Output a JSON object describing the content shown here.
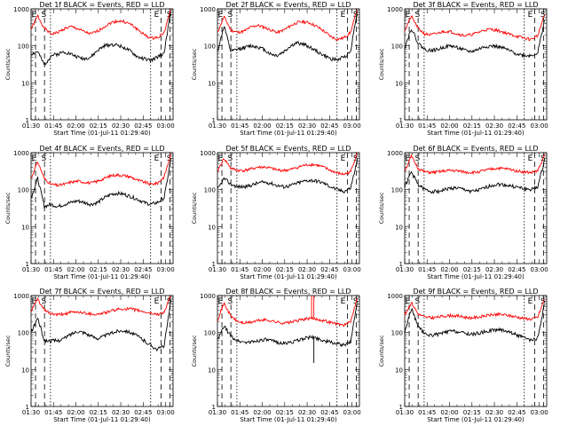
{
  "figure": {
    "y_axis_label": "Counts/sec",
    "x_axis_label": "Start Time (01-Jul-11 01:29:40)",
    "event_markers": {
      "eclipse": "E",
      "saa": "S"
    },
    "colors": {
      "events": "#000000",
      "lld": "#ff0000"
    }
  },
  "chart_data": [
    {
      "type": "line",
      "title": "Det 1f BLACK = Events, RED = LLD",
      "xlabel": "Start Time (01-Jul-11 01:29:40)",
      "ylabel": "Counts/sec",
      "yscale": "log",
      "ylim": [
        1,
        1000
      ],
      "xlim": [
        "01:30",
        "03:05"
      ],
      "x_ticks": [
        "01:30",
        "01:45",
        "02:00",
        "02:15",
        "02:30",
        "02:45",
        "03:00"
      ],
      "y_ticks": [
        "1",
        "10",
        "100",
        "1000"
      ],
      "markers": {
        "left": [
          "E",
          "S"
        ],
        "right": [
          "E",
          "S"
        ]
      },
      "spike": false,
      "series": [
        {
          "name": "LLD",
          "color": "red",
          "values": [
            280,
            650,
            300,
            210,
            230,
            290,
            330,
            290,
            240,
            210,
            250,
            330,
            420,
            470,
            450,
            380,
            280,
            200,
            160,
            170,
            230,
            1000
          ]
        },
        {
          "name": "Events",
          "color": "black",
          "values": [
            60,
            70,
            30,
            55,
            60,
            70,
            60,
            50,
            45,
            50,
            75,
            100,
            110,
            105,
            90,
            70,
            50,
            45,
            40,
            50,
            65,
            900
          ]
        }
      ]
    },
    {
      "type": "line",
      "title": "Det 2f BLACK = Events, RED = LLD",
      "xlabel": "Start Time (01-Jul-11 01:29:40)",
      "ylabel": "Counts/sec",
      "yscale": "log",
      "ylim": [
        1,
        1000
      ],
      "xlim": [
        "01:30",
        "03:05"
      ],
      "x_ticks": [
        "01:30",
        "01:45",
        "02:00",
        "02:15",
        "02:30",
        "02:45",
        "03:00"
      ],
      "y_ticks": [
        "1",
        "10",
        "100",
        "1000"
      ],
      "markers": {
        "left": [
          "E",
          "S"
        ],
        "right": [
          "E",
          "S"
        ]
      },
      "spike": false,
      "series": [
        {
          "name": "LLD",
          "color": "red",
          "values": [
            230,
            620,
            270,
            230,
            250,
            320,
            360,
            320,
            270,
            230,
            270,
            350,
            430,
            450,
            410,
            330,
            250,
            180,
            150,
            165,
            230,
            980
          ]
        },
        {
          "name": "Events",
          "color": "black",
          "values": [
            70,
            350,
            70,
            80,
            90,
            100,
            95,
            80,
            60,
            55,
            70,
            100,
            120,
            110,
            90,
            70,
            55,
            45,
            42,
            50,
            70,
            900
          ]
        }
      ]
    },
    {
      "type": "line",
      "title": "Det 3f BLACK = Events, RED = LLD",
      "xlabel": "Start Time (01-Jul-11 01:29:40)",
      "ylabel": "Counts/sec",
      "yscale": "log",
      "ylim": [
        1,
        1000
      ],
      "xlim": [
        "01:30",
        "03:05"
      ],
      "x_ticks": [
        "01:30",
        "01:45",
        "02:00",
        "02:15",
        "02:30",
        "02:45",
        "03:00"
      ],
      "y_ticks": [
        "1",
        "10",
        "100",
        "1000"
      ],
      "markers": {
        "left": [
          "E",
          "S"
        ],
        "right": [
          "E",
          "S"
        ]
      },
      "spike": false,
      "series": [
        {
          "name": "LLD",
          "color": "red",
          "values": [
            260,
            640,
            300,
            210,
            200,
            220,
            250,
            240,
            210,
            190,
            200,
            230,
            270,
            280,
            260,
            230,
            200,
            180,
            160,
            150,
            190,
            700
          ]
        },
        {
          "name": "Events",
          "color": "black",
          "values": [
            90,
            300,
            120,
            80,
            75,
            80,
            95,
            100,
            90,
            75,
            70,
            80,
            95,
            100,
            95,
            85,
            70,
            60,
            55,
            55,
            65,
            500
          ]
        }
      ]
    },
    {
      "type": "line",
      "title": "Det 4f BLACK = Events, RED = LLD",
      "xlabel": "Start Time (01-Jul-11 01:29:40)",
      "ylabel": "Counts/sec",
      "yscale": "log",
      "ylim": [
        1,
        1000
      ],
      "xlim": [
        "01:30",
        "03:05"
      ],
      "x_ticks": [
        "01:30",
        "01:45",
        "02:00",
        "02:15",
        "02:30",
        "02:45",
        "03:00"
      ],
      "y_ticks": [
        "1",
        "10",
        "100",
        "1000"
      ],
      "markers": {
        "left": [
          "E",
          "S"
        ],
        "right": [
          "E",
          "S"
        ]
      },
      "spike": false,
      "series": [
        {
          "name": "LLD",
          "color": "red",
          "values": [
            200,
            570,
            200,
            140,
            130,
            140,
            160,
            170,
            160,
            150,
            170,
            200,
            240,
            250,
            240,
            220,
            180,
            160,
            140,
            150,
            220,
            900
          ]
        },
        {
          "name": "Events",
          "color": "black",
          "values": [
            60,
            200,
            35,
            40,
            35,
            40,
            45,
            50,
            45,
            40,
            45,
            60,
            75,
            80,
            75,
            65,
            55,
            45,
            40,
            45,
            60,
            650
          ]
        }
      ]
    },
    {
      "type": "line",
      "title": "Det 5f BLACK = Events, RED = LLD",
      "xlabel": "Start Time (01-Jul-11 01:29:40)",
      "ylabel": "Counts/sec",
      "yscale": "log",
      "ylim": [
        1,
        1000
      ],
      "xlim": [
        "01:30",
        "03:05"
      ],
      "x_ticks": [
        "01:30",
        "01:45",
        "02:00",
        "02:15",
        "02:30",
        "02:45",
        "03:00"
      ],
      "y_ticks": [
        "1",
        "10",
        "100",
        "1000"
      ],
      "markers": {
        "left": [
          "E",
          "S"
        ],
        "right": [
          "E",
          "S"
        ]
      },
      "spike": false,
      "series": [
        {
          "name": "LLD",
          "color": "red",
          "values": [
            320,
            700,
            380,
            330,
            330,
            360,
            400,
            410,
            380,
            340,
            330,
            350,
            400,
            450,
            480,
            460,
            400,
            330,
            280,
            260,
            300,
            1000
          ]
        },
        {
          "name": "Events",
          "color": "black",
          "values": [
            100,
            200,
            140,
            120,
            120,
            130,
            150,
            160,
            150,
            130,
            120,
            130,
            150,
            170,
            180,
            170,
            150,
            120,
            100,
            90,
            110,
            600
          ]
        }
      ]
    },
    {
      "type": "line",
      "title": "Det 6f BLACK = Events, RED = LLD",
      "xlabel": "Start Time (01-Jul-11 01:29:40)",
      "ylabel": "Counts/sec",
      "yscale": "log",
      "ylim": [
        1,
        1000
      ],
      "xlim": [
        "01:30",
        "03:05"
      ],
      "x_ticks": [
        "01:30",
        "01:45",
        "02:00",
        "02:15",
        "02:30",
        "02:45",
        "03:00"
      ],
      "y_ticks": [
        "1",
        "10",
        "100",
        "1000"
      ],
      "markers": {
        "left": [
          "E",
          "S"
        ],
        "right": [
          "E",
          "S"
        ]
      },
      "spike": false,
      "series": [
        {
          "name": "LLD",
          "color": "red",
          "values": [
            320,
            800,
            380,
            300,
            290,
            300,
            320,
            330,
            320,
            300,
            290,
            300,
            330,
            360,
            380,
            370,
            350,
            320,
            300,
            290,
            320,
            850
          ]
        },
        {
          "name": "Events",
          "color": "black",
          "values": [
            120,
            300,
            140,
            100,
            90,
            90,
            100,
            110,
            110,
            100,
            90,
            95,
            110,
            130,
            140,
            135,
            125,
            115,
            105,
            100,
            120,
            600
          ]
        }
      ]
    },
    {
      "type": "line",
      "title": "Det 7f BLACK = Events, RED = LLD",
      "xlabel": "Start Time (01-Jul-11 01:29:40)",
      "ylabel": "Counts/sec",
      "yscale": "log",
      "ylim": [
        1,
        1000
      ],
      "xlim": [
        "01:30",
        "03:05"
      ],
      "x_ticks": [
        "01:30",
        "01:45",
        "02:00",
        "02:15",
        "02:30",
        "02:45",
        "03:00"
      ],
      "y_ticks": [
        "1",
        "10",
        "100",
        "1000"
      ],
      "markers": {
        "left": [
          "E",
          "S"
        ],
        "right": [
          "E",
          "S"
        ]
      },
      "spike": false,
      "series": [
        {
          "name": "LLD",
          "color": "red",
          "values": [
            380,
            800,
            400,
            320,
            300,
            320,
            350,
            360,
            340,
            320,
            310,
            340,
            380,
            420,
            440,
            430,
            400,
            360,
            330,
            310,
            350,
            1000
          ]
        },
        {
          "name": "Events",
          "color": "black",
          "values": [
            100,
            250,
            60,
            60,
            60,
            70,
            90,
            110,
            100,
            80,
            70,
            80,
            95,
            110,
            115,
            100,
            80,
            60,
            45,
            35,
            45,
            700
          ]
        }
      ]
    },
    {
      "type": "line",
      "title": "Det 8f BLACK = Events, RED = LLD",
      "xlabel": "Start Time (01-Jul-11 01:29:40)",
      "ylabel": "Counts/sec",
      "yscale": "log",
      "ylim": [
        1,
        1000
      ],
      "xlim": [
        "01:30",
        "03:05"
      ],
      "x_ticks": [
        "01:30",
        "01:45",
        "02:00",
        "02:15",
        "02:30",
        "02:45",
        "03:00"
      ],
      "y_ticks": [
        "1",
        "10",
        "100",
        "1000"
      ],
      "markers": {
        "left": [
          "E",
          "S"
        ],
        "right": [
          "E",
          "S"
        ]
      },
      "spike": true,
      "series": [
        {
          "name": "LLD",
          "color": "red",
          "values": [
            220,
            620,
            280,
            200,
            180,
            190,
            210,
            220,
            210,
            190,
            180,
            190,
            210,
            230,
            240,
            230,
            210,
            190,
            170,
            160,
            190,
            900
          ]
        },
        {
          "name": "Events",
          "color": "black",
          "values": [
            60,
            150,
            80,
            60,
            55,
            55,
            60,
            65,
            60,
            55,
            50,
            55,
            60,
            70,
            75,
            70,
            60,
            55,
            50,
            45,
            55,
            650
          ]
        }
      ]
    },
    {
      "type": "line",
      "title": "Det 9f BLACK = Events, RED = LLD",
      "xlabel": "Start Time (01-Jul-11 01:29:40)",
      "ylabel": "Counts/sec",
      "yscale": "log",
      "ylim": [
        1,
        1000
      ],
      "xlim": [
        "01:30",
        "03:05"
      ],
      "x_ticks": [
        "01:30",
        "01:45",
        "02:00",
        "02:15",
        "02:30",
        "02:45",
        "03:00"
      ],
      "y_ticks": [
        "1",
        "10",
        "100",
        "1000"
      ],
      "markers": {
        "left": [
          "E",
          "S"
        ],
        "right": [
          "E",
          "S"
        ]
      },
      "spike": false,
      "series": [
        {
          "name": "LLD",
          "color": "red",
          "values": [
            300,
            650,
            320,
            260,
            250,
            260,
            280,
            290,
            280,
            260,
            250,
            260,
            280,
            300,
            310,
            300,
            280,
            260,
            240,
            230,
            260,
            800
          ]
        },
        {
          "name": "Events",
          "color": "black",
          "values": [
            100,
            450,
            150,
            90,
            85,
            90,
            100,
            110,
            105,
            95,
            90,
            95,
            105,
            115,
            120,
            115,
            100,
            85,
            70,
            60,
            70,
            600
          ]
        }
      ]
    }
  ]
}
